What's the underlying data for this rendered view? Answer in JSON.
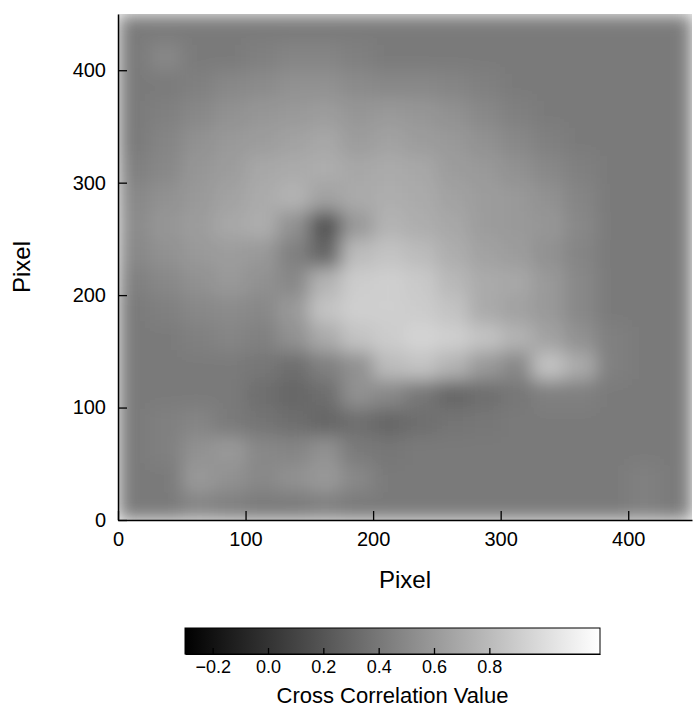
{
  "chart_data": {
    "type": "heatmap",
    "xlabel": "Pixel",
    "ylabel": "Pixel",
    "color": "gray",
    "xlim": [
      0,
      450
    ],
    "ylim": [
      0,
      450
    ],
    "xticks": [
      0,
      100,
      200,
      300,
      400
    ],
    "yticks": [
      0,
      100,
      200,
      300,
      400
    ],
    "x": [
      0,
      25,
      50,
      75,
      100,
      125,
      150,
      175,
      200,
      225,
      250,
      275,
      300,
      325,
      350,
      375,
      400,
      425
    ],
    "y": [
      0,
      25,
      50,
      75,
      100,
      125,
      150,
      175,
      200,
      225,
      250,
      275,
      300,
      325,
      350,
      375,
      400,
      425
    ],
    "z": [
      [
        0.42,
        0.42,
        0.48,
        0.45,
        0.42,
        0.42,
        0.45,
        0.42,
        0.42,
        0.42,
        0.42,
        0.42,
        0.42,
        0.42,
        0.42,
        0.42,
        0.45,
        0.42
      ],
      [
        0.42,
        0.42,
        0.6,
        0.55,
        0.5,
        0.55,
        0.6,
        0.5,
        0.42,
        0.42,
        0.42,
        0.42,
        0.42,
        0.42,
        0.42,
        0.42,
        0.45,
        0.42
      ],
      [
        0.42,
        0.45,
        0.55,
        0.6,
        0.5,
        0.48,
        0.55,
        0.42,
        0.4,
        0.42,
        0.42,
        0.42,
        0.42,
        0.42,
        0.42,
        0.42,
        0.42,
        0.42
      ],
      [
        0.42,
        0.45,
        0.48,
        0.42,
        0.38,
        0.35,
        0.3,
        0.35,
        0.3,
        0.35,
        0.38,
        0.4,
        0.42,
        0.42,
        0.42,
        0.42,
        0.42,
        0.42
      ],
      [
        0.42,
        0.42,
        0.42,
        0.42,
        0.35,
        0.3,
        0.35,
        0.55,
        0.5,
        0.4,
        0.3,
        0.35,
        0.4,
        0.45,
        0.45,
        0.42,
        0.42,
        0.42
      ],
      [
        0.42,
        0.42,
        0.42,
        0.42,
        0.4,
        0.35,
        0.45,
        0.55,
        0.8,
        0.85,
        0.75,
        0.6,
        0.5,
        0.85,
        0.7,
        0.45,
        0.42,
        0.42
      ],
      [
        0.42,
        0.42,
        0.45,
        0.48,
        0.45,
        0.55,
        0.7,
        0.85,
        0.9,
        0.95,
        0.92,
        0.85,
        0.75,
        0.65,
        0.55,
        0.45,
        0.42,
        0.42
      ],
      [
        0.42,
        0.45,
        0.5,
        0.52,
        0.5,
        0.6,
        0.85,
        0.92,
        0.92,
        0.9,
        0.85,
        0.7,
        0.65,
        0.6,
        0.5,
        0.42,
        0.42,
        0.42
      ],
      [
        0.45,
        0.5,
        0.55,
        0.6,
        0.55,
        0.5,
        0.75,
        0.9,
        0.92,
        0.88,
        0.78,
        0.7,
        0.68,
        0.6,
        0.5,
        0.42,
        0.42,
        0.42
      ],
      [
        0.5,
        0.55,
        0.6,
        0.62,
        0.6,
        0.45,
        0.3,
        0.8,
        0.85,
        0.8,
        0.72,
        0.65,
        0.62,
        0.55,
        0.48,
        0.42,
        0.42,
        0.42
      ],
      [
        0.52,
        0.58,
        0.62,
        0.68,
        0.72,
        0.55,
        0.2,
        0.6,
        0.75,
        0.72,
        0.68,
        0.62,
        0.6,
        0.58,
        0.5,
        0.42,
        0.42,
        0.42
      ],
      [
        0.5,
        0.55,
        0.6,
        0.65,
        0.7,
        0.75,
        0.65,
        0.7,
        0.72,
        0.7,
        0.65,
        0.62,
        0.6,
        0.55,
        0.48,
        0.42,
        0.42,
        0.42
      ],
      [
        0.45,
        0.5,
        0.58,
        0.62,
        0.68,
        0.7,
        0.72,
        0.68,
        0.7,
        0.68,
        0.62,
        0.6,
        0.55,
        0.5,
        0.45,
        0.42,
        0.42,
        0.42
      ],
      [
        0.42,
        0.48,
        0.55,
        0.6,
        0.62,
        0.65,
        0.68,
        0.62,
        0.65,
        0.62,
        0.6,
        0.55,
        0.5,
        0.45,
        0.42,
        0.42,
        0.42,
        0.42
      ],
      [
        0.42,
        0.45,
        0.5,
        0.55,
        0.58,
        0.6,
        0.62,
        0.58,
        0.6,
        0.58,
        0.55,
        0.5,
        0.45,
        0.42,
        0.42,
        0.42,
        0.42,
        0.42
      ],
      [
        0.42,
        0.42,
        0.45,
        0.5,
        0.52,
        0.55,
        0.55,
        0.52,
        0.5,
        0.5,
        0.48,
        0.45,
        0.42,
        0.42,
        0.42,
        0.42,
        0.42,
        0.42
      ],
      [
        0.42,
        0.5,
        0.42,
        0.42,
        0.45,
        0.48,
        0.48,
        0.45,
        0.42,
        0.42,
        0.42,
        0.42,
        0.42,
        0.42,
        0.42,
        0.42,
        0.42,
        0.42
      ],
      [
        0.42,
        0.42,
        0.42,
        0.42,
        0.42,
        0.42,
        0.42,
        0.42,
        0.42,
        0.42,
        0.42,
        0.42,
        0.42,
        0.42,
        0.42,
        0.42,
        0.42,
        0.42
      ]
    ],
    "colorbar": {
      "label": "Cross Correlation Value",
      "range": [
        -0.3,
        1.2
      ],
      "ticks": [
        {
          "value": -0.2,
          "label": "−0.2"
        },
        {
          "value": 0,
          "label": "0.0"
        },
        0.2,
        0.4,
        0.6,
        0.8
      ]
    }
  }
}
